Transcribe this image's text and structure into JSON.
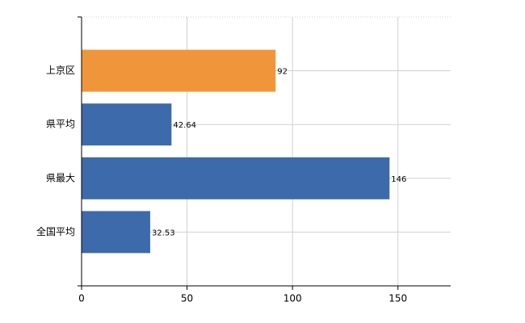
{
  "chart_data": {
    "type": "hbar",
    "categories": [
      "上京区",
      "県平均",
      "県最大",
      "全国平均"
    ],
    "values": [
      92,
      42.64,
      146,
      32.53
    ],
    "colors": [
      "#f0963a",
      "#3d6aaa",
      "#3d6aaa",
      "#3d6aaa"
    ],
    "xlim": [
      0,
      175
    ],
    "xticks": [
      0,
      50,
      100,
      150
    ],
    "grid": true
  }
}
